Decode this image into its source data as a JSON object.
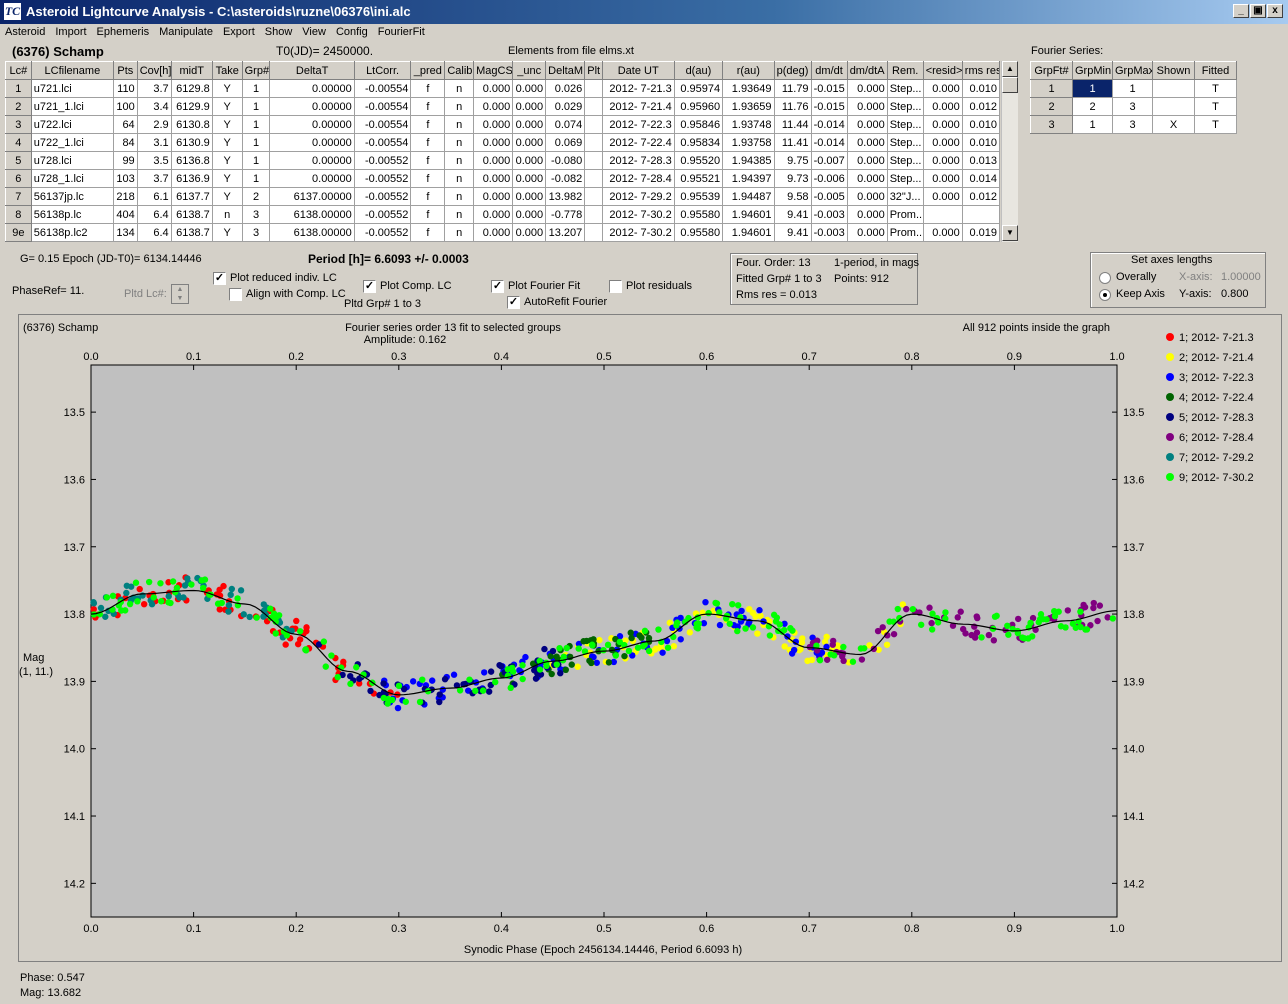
{
  "window": {
    "title": "Asteroid Lightcurve Analysis - C:\\asteroids\\ruzne\\06376\\ini.alc",
    "app_icon": "TC",
    "minimize": "_",
    "maximize": "▣",
    "close": "x"
  },
  "menu": [
    "Asteroid",
    "Import",
    "Ephemeris",
    "Manipulate",
    "Export",
    "Show",
    "View",
    "Config",
    "FourierFit"
  ],
  "header": {
    "asteroid": "(6376) Schamp",
    "t0": "T0(JD)= 2450000.",
    "elements": "Elements from file elms.xt",
    "fourier_series_label": "Fourier Series:"
  },
  "lc_table": {
    "columns": [
      "Lc#",
      "LCfilename",
      "Pts",
      "Cov[h]",
      "midT",
      "Take",
      "Grp#",
      "DeltaT",
      "LtCorr.",
      "_pred",
      "Calib",
      "MagCS",
      "_unc",
      "DeltaM",
      "Plt",
      "Date UT",
      "d(au)",
      "r(au)",
      "p(deg)",
      "dm/dt",
      "dm/dtA",
      "Rem.",
      "<resid>",
      "rms res"
    ],
    "rows": [
      [
        "1",
        "u721.lci",
        "110",
        "3.7",
        "6129.8",
        "Y",
        "1",
        "0.00000",
        "-0.00554",
        "f",
        "n",
        "0.000",
        "0.000",
        "0.026",
        "",
        "2012- 7-21.3",
        "0.95974",
        "1.93649",
        "11.79",
        "-0.015",
        "0.000",
        "Step...",
        "0.000",
        "0.010"
      ],
      [
        "2",
        "u721_1.lci",
        "100",
        "3.4",
        "6129.9",
        "Y",
        "1",
        "0.00000",
        "-0.00554",
        "f",
        "n",
        "0.000",
        "0.000",
        "0.029",
        "",
        "2012- 7-21.4",
        "0.95960",
        "1.93659",
        "11.76",
        "-0.015",
        "0.000",
        "Step...",
        "0.000",
        "0.012"
      ],
      [
        "3",
        "u722.lci",
        "64",
        "2.9",
        "6130.8",
        "Y",
        "1",
        "0.00000",
        "-0.00554",
        "f",
        "n",
        "0.000",
        "0.000",
        "0.074",
        "",
        "2012- 7-22.3",
        "0.95846",
        "1.93748",
        "11.44",
        "-0.014",
        "0.000",
        "Step...",
        "0.000",
        "0.010"
      ],
      [
        "4",
        "u722_1.lci",
        "84",
        "3.1",
        "6130.9",
        "Y",
        "1",
        "0.00000",
        "-0.00554",
        "f",
        "n",
        "0.000",
        "0.000",
        "0.069",
        "",
        "2012- 7-22.4",
        "0.95834",
        "1.93758",
        "11.41",
        "-0.014",
        "0.000",
        "Step...",
        "0.000",
        "0.010"
      ],
      [
        "5",
        "u728.lci",
        "99",
        "3.5",
        "6136.8",
        "Y",
        "1",
        "0.00000",
        "-0.00552",
        "f",
        "n",
        "0.000",
        "0.000",
        "-0.080",
        "",
        "2012- 7-28.3",
        "0.95520",
        "1.94385",
        "9.75",
        "-0.007",
        "0.000",
        "Step...",
        "0.000",
        "0.013"
      ],
      [
        "6",
        "u728_1.lci",
        "103",
        "3.7",
        "6136.9",
        "Y",
        "1",
        "0.00000",
        "-0.00552",
        "f",
        "n",
        "0.000",
        "0.000",
        "-0.082",
        "",
        "2012- 7-28.4",
        "0.95521",
        "1.94397",
        "9.73",
        "-0.006",
        "0.000",
        "Step...",
        "0.000",
        "0.014"
      ],
      [
        "7",
        "56137jp.lc",
        "218",
        "6.1",
        "6137.7",
        "Y",
        "2",
        "6137.00000",
        "-0.00552",
        "f",
        "n",
        "0.000",
        "0.000",
        "13.982",
        "",
        "2012- 7-29.2",
        "0.95539",
        "1.94487",
        "9.58",
        "-0.005",
        "0.000",
        "32\"J...",
        "0.000",
        "0.012"
      ],
      [
        "8",
        "56138p.lc",
        "404",
        "6.4",
        "6138.7",
        "n",
        "3",
        "6138.00000",
        "-0.00552",
        "f",
        "n",
        "0.000",
        "0.000",
        "-0.778",
        "",
        "2012- 7-30.2",
        "0.95580",
        "1.94601",
        "9.41",
        "-0.003",
        "0.000",
        "Prom...",
        "",
        ""
      ],
      [
        "9e",
        "56138p.lc2",
        "134",
        "6.4",
        "6138.7",
        "Y",
        "3",
        "6138.00000",
        "-0.00552",
        "f",
        "n",
        "0.000",
        "0.000",
        "13.207",
        "",
        "2012- 7-30.2",
        "0.95580",
        "1.94601",
        "9.41",
        "-0.003",
        "0.000",
        "Prom...",
        "0.000",
        "0.019"
      ]
    ]
  },
  "fourier_table": {
    "columns": [
      "GrpFt#",
      "GrpMin",
      "GrpMax",
      "Shown",
      "Fitted"
    ],
    "rows": [
      [
        "1",
        "1",
        "1",
        "",
        "T"
      ],
      [
        "2",
        "2",
        "3",
        "",
        "T"
      ],
      [
        "3",
        "1",
        "3",
        "X",
        "T"
      ]
    ]
  },
  "controls": {
    "g_epoch": "G= 0.15    Epoch (JD-T0)= 6134.14446",
    "period": "Period [h]= 6.6093 +/- 0.0003",
    "phaseref": "PhaseRef= 11.",
    "pltd_lc": "Pltd Lc#:",
    "plot_reduced": "Plot reduced indiv. LC",
    "align_comp": "Align with Comp. LC",
    "plot_comp": "Plot Comp. LC",
    "pltd_grp": "Pltd Grp#  1   to   3",
    "plot_fourier": "Plot Fourier Fit",
    "autorefit": "AutoRefit Fourier",
    "plot_residuals": "Plot residuals",
    "check": "✓",
    "fit_info": {
      "order": "Four. Order: 13",
      "period_info": "1-period, in mags",
      "fitted": "Fitted Grp# 1 to 3",
      "points": "Points: 912",
      "rms": "Rms res      = 0.013"
    },
    "axes": {
      "title": "Set axes lengths",
      "overally": "Overally",
      "keep_axis": "Keep Axis",
      "x_axis": "X-axis:",
      "x_val": "1.00000",
      "y_axis": "Y-axis:",
      "y_val": "0.800"
    }
  },
  "chart_data": {
    "type": "scatter",
    "title_left": "(6376) Schamp",
    "title": "Fourier series order 13 fit to selected groups",
    "subtitle": "Amplitude: 0.162",
    "title_right": "All 912 points inside the graph",
    "xlabel": "Synodic Phase (Epoch 2456134.14446, Period 6.6093 h)",
    "ylabel": "Mag",
    "ylabel2": "(1, 11.)",
    "xlim": [
      0.0,
      1.0
    ],
    "ylim": [
      14.25,
      13.43
    ],
    "y_inverted": true,
    "x_ticks": [
      "0.0",
      "0.1",
      "0.2",
      "0.3",
      "0.4",
      "0.5",
      "0.6",
      "0.7",
      "0.8",
      "0.9",
      "1.0"
    ],
    "y_ticks": [
      "13.5",
      "13.6",
      "13.7",
      "13.8",
      "13.9",
      "14.0",
      "14.1",
      "14.2"
    ],
    "background": "#c0c0c0",
    "series": [
      {
        "name": "1; 2012- 7-21.3",
        "color": "#ff0000",
        "phase_range": [
          0.0,
          0.3
        ]
      },
      {
        "name": "2; 2012- 7-21.4",
        "color": "#ffff00",
        "phase_range": [
          0.44,
          0.8
        ]
      },
      {
        "name": "3; 2012- 7-22.3",
        "color": "#0000ff",
        "phase_range": [
          0.28,
          0.72
        ]
      },
      {
        "name": "4; 2012- 7-22.4",
        "color": "#006400",
        "phase_range": [
          0.4,
          0.55
        ]
      },
      {
        "name": "5; 2012- 7-28.3",
        "color": "#000080",
        "phase_range": [
          0.22,
          0.46
        ]
      },
      {
        "name": "6; 2012- 7-28.4",
        "color": "#800080",
        "phase_range": [
          0.7,
          1.0
        ]
      },
      {
        "name": "7; 2012- 7-29.2",
        "color": "#008080",
        "phase_range": [
          0.0,
          0.2
        ]
      },
      {
        "name": "9; 2012- 7-30.2",
        "color": "#00ff00",
        "phase_range": [
          0.0,
          1.0
        ]
      }
    ],
    "fourier_curve": {
      "phase": [
        0.0,
        0.05,
        0.1,
        0.15,
        0.2,
        0.25,
        0.3,
        0.35,
        0.4,
        0.45,
        0.5,
        0.55,
        0.6,
        0.65,
        0.7,
        0.75,
        0.8,
        0.85,
        0.9,
        0.95,
        1.0
      ],
      "mag": [
        13.8,
        13.77,
        13.765,
        13.785,
        13.83,
        13.885,
        13.92,
        13.91,
        13.895,
        13.87,
        13.855,
        13.84,
        13.8,
        13.81,
        13.85,
        13.86,
        13.8,
        13.815,
        13.825,
        13.81,
        13.795
      ]
    }
  },
  "status": {
    "phase": "Phase:  0.547",
    "mag": "Mag:   13.682"
  }
}
